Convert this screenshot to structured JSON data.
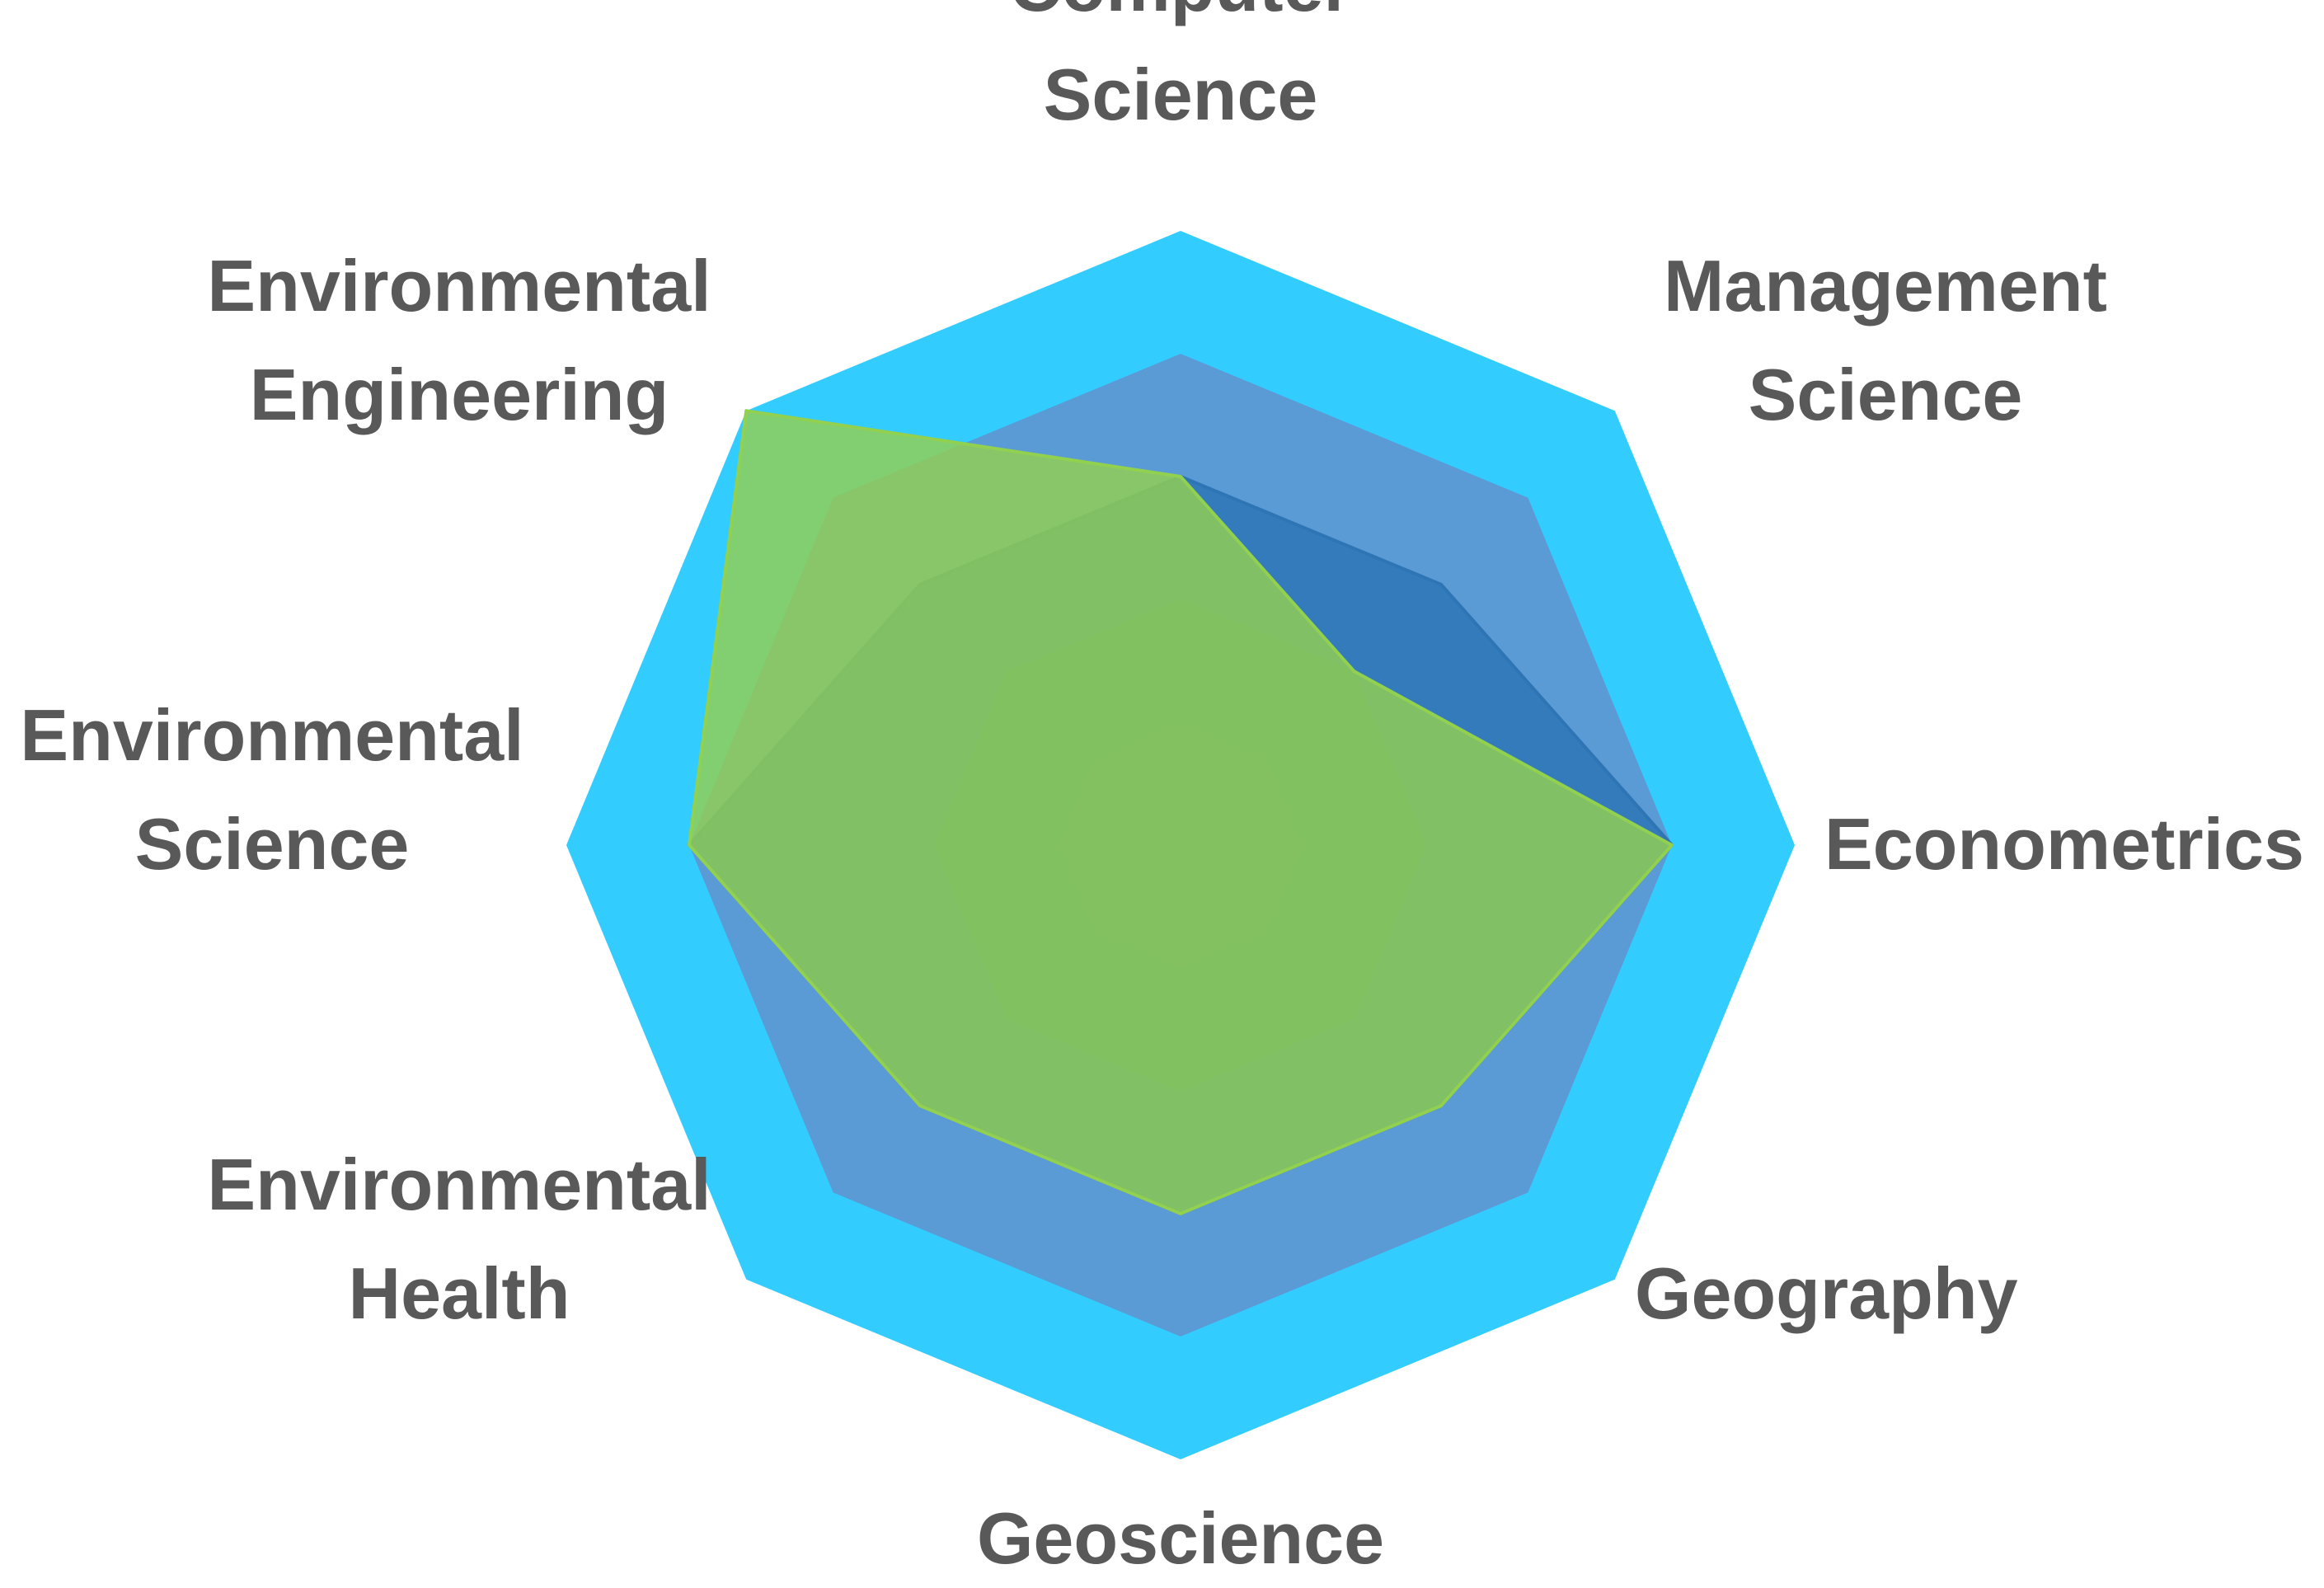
{
  "chart_data": {
    "type": "radar",
    "title": "",
    "axes": [
      "Computer Science",
      "Management Science",
      "Econometrics",
      "Geography",
      "Geoscience",
      "Environmental Health",
      "Environmental Science",
      "Environmental Engineering"
    ],
    "axis_label_lines": [
      [
        "Computer",
        "Science"
      ],
      [
        "Management",
        "Science"
      ],
      [
        "Econometrics"
      ],
      [
        "Geography"
      ],
      [
        "Geoscience"
      ],
      [
        "Environmental",
        "Health"
      ],
      [
        "Environmental",
        "Science"
      ],
      [
        "Environmental",
        "Engineering"
      ]
    ],
    "rings": 5,
    "rmax": 5,
    "ring_colors": [
      "#33CCFF",
      "#5B9BD5",
      "#5B9BD5",
      "#70AD47",
      "#8E9A2E"
    ],
    "grid": false,
    "legend": "none",
    "series": [
      {
        "color": "#2E75B6",
        "opacity": 0.85,
        "values": [
          3,
          3,
          4,
          3,
          3,
          3,
          4,
          3
        ]
      },
      {
        "color": "#92D050",
        "opacity": 0.82,
        "values": [
          3,
          2,
          4,
          3,
          3,
          3,
          4,
          5
        ]
      }
    ]
  }
}
